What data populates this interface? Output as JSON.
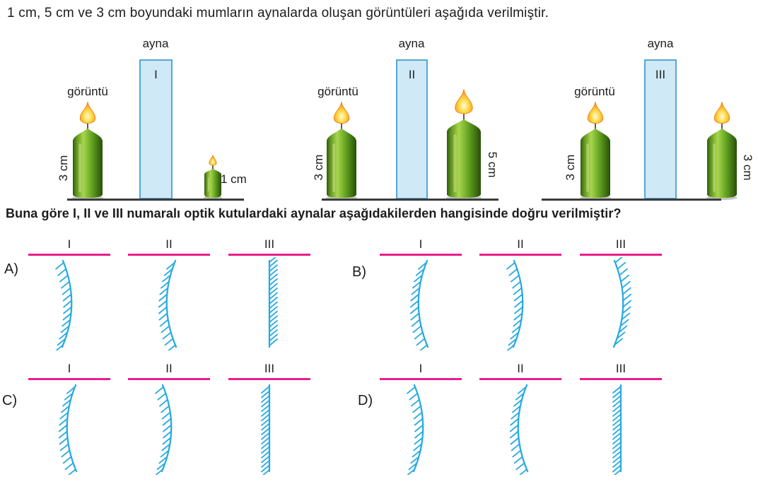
{
  "intro": "1 cm, 5 cm ve 3 cm boyundaki mumların aynalarda oluşan görüntüleri aşağıda verilmiştir.",
  "question": "Buna göre I, II ve III numaralı optik kutulardaki aynalar aşağıdakilerden hangisinde doğru verilmiştir?",
  "colors": {
    "mirror_box_fill": "#cfe9f7",
    "mirror_box_border": "#55a6d6",
    "mirror_stroke": "#29aae1",
    "divider_pink": "#ec1c8e",
    "ground": "#3b3b3b",
    "candle_green": "#6cab26",
    "flame_orange": "#f68b1f",
    "text": "#1c1c1c"
  },
  "diagrams": [
    {
      "ayna": "ayna",
      "numeral": "I",
      "image_label": "görüntü",
      "image_size": "3 cm",
      "object_size": "1 cm"
    },
    {
      "ayna": "ayna",
      "numeral": "II",
      "image_label": "görüntü",
      "image_size": "3 cm",
      "object_size": "5 cm"
    },
    {
      "ayna": "ayna",
      "numeral": "III",
      "image_label": "görüntü",
      "image_size": "3 cm",
      "object_size": "3 cm"
    }
  ],
  "options": [
    {
      "letter": "A)",
      "mirrors": [
        {
          "label": "I",
          "shape": "convex-mirror-facing-right",
          "bulge": 1,
          "hatch_side": -1
        },
        {
          "label": "II",
          "shape": "concave-mirror-facing-right",
          "bulge": -1,
          "hatch_side": -1
        },
        {
          "label": "III",
          "shape": "plane-mirror-facing-left",
          "bulge": 0,
          "hatch_side": 1
        }
      ]
    },
    {
      "letter": "B)",
      "mirrors": [
        {
          "label": "I",
          "shape": "concave-mirror-facing-right",
          "bulge": -1,
          "hatch_side": -1
        },
        {
          "label": "II",
          "shape": "convex-mirror-facing-right",
          "bulge": 1,
          "hatch_side": -1
        },
        {
          "label": "III",
          "shape": "concave-mirror-facing-left",
          "bulge": 1,
          "hatch_side": 1
        }
      ]
    },
    {
      "letter": "C)",
      "mirrors": [
        {
          "label": "I",
          "shape": "concave-mirror-facing-right",
          "bulge": -1,
          "hatch_side": -1
        },
        {
          "label": "II",
          "shape": "convex-mirror-facing-right",
          "bulge": 1,
          "hatch_side": -1
        },
        {
          "label": "III",
          "shape": "plane-mirror-facing-right",
          "bulge": 0,
          "hatch_side": -1
        }
      ]
    },
    {
      "letter": "D)",
      "mirrors": [
        {
          "label": "I",
          "shape": "convex-mirror-facing-right",
          "bulge": 1,
          "hatch_side": -1
        },
        {
          "label": "II",
          "shape": "concave-mirror-facing-right",
          "bulge": -1,
          "hatch_side": -1
        },
        {
          "label": "III",
          "shape": "plane-mirror-facing-right",
          "bulge": 0,
          "hatch_side": -1
        }
      ]
    }
  ]
}
